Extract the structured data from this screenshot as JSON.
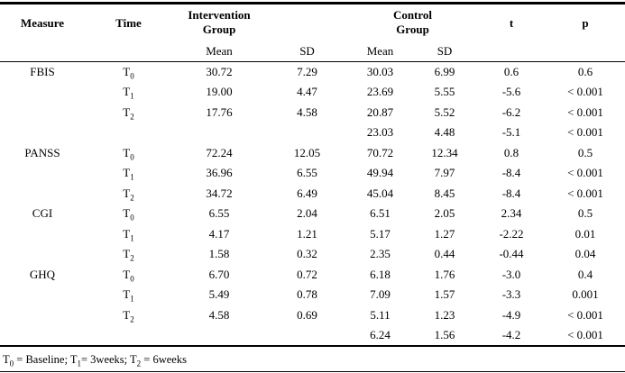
{
  "table": {
    "headers": {
      "measure": "Measure",
      "time": "Time",
      "intervention_group": "Intervention Group",
      "control_group": "Control Group",
      "intervention_mean": "Mean",
      "intervention_sd": "SD",
      "control_mean": "Mean",
      "control_sd": "SD",
      "t": "t",
      "p": "p"
    },
    "rows": [
      [
        "FBIS",
        "T0",
        "30.72",
        "7.29",
        "30.03",
        "6.99",
        "0.6",
        "0.6"
      ],
      [
        "",
        "T1",
        "19.00",
        "4.47",
        "23.69",
        "5.55",
        "-5.6",
        "< 0.001"
      ],
      [
        "",
        "T2",
        "17.76",
        "4.58",
        "20.87",
        "5.52",
        "-6.2",
        "< 0.001"
      ],
      [
        "",
        "",
        "",
        "",
        "23.03",
        "4.48",
        "-5.1",
        "< 0.001"
      ],
      [
        "PANSS",
        "T0",
        "72.24",
        "12.05",
        "70.72",
        "12.34",
        "0.8",
        "0.5"
      ],
      [
        "",
        "T1",
        "36.96",
        "6.55",
        "49.94",
        "7.97",
        "-8.4",
        "< 0.001"
      ],
      [
        "",
        "T2",
        "34.72",
        "6.49",
        "45.04",
        "8.45",
        "-8.4",
        "< 0.001"
      ],
      [
        "CGI",
        "T0",
        "6.55",
        "2.04",
        "6.51",
        "2.05",
        "2.34",
        "0.5"
      ],
      [
        "",
        "T1",
        "4.17",
        "1.21",
        "5.17",
        "1.27",
        "-2.22",
        "0.01"
      ],
      [
        "",
        "T2",
        "1.58",
        "0.32",
        "2.35",
        "0.44",
        "-0.44",
        "0.04"
      ],
      [
        "GHQ",
        "T0",
        "6.70",
        "0.72",
        "6.18",
        "1.76",
        "-3.0",
        "0.4"
      ],
      [
        "",
        "T1",
        "5.49",
        "0.78",
        "7.09",
        "1.57",
        "-3.3",
        "0.001"
      ],
      [
        "",
        "T2",
        "4.58",
        "0.69",
        "5.11",
        "1.23",
        "-4.9",
        "< 0.001"
      ],
      [
        "",
        "",
        "",
        "",
        "6.24",
        "1.56",
        "-4.2",
        "< 0.001"
      ]
    ],
    "footnote": "T0 = Baseline; T1= 3weeks; T2 = 6weeks"
  }
}
